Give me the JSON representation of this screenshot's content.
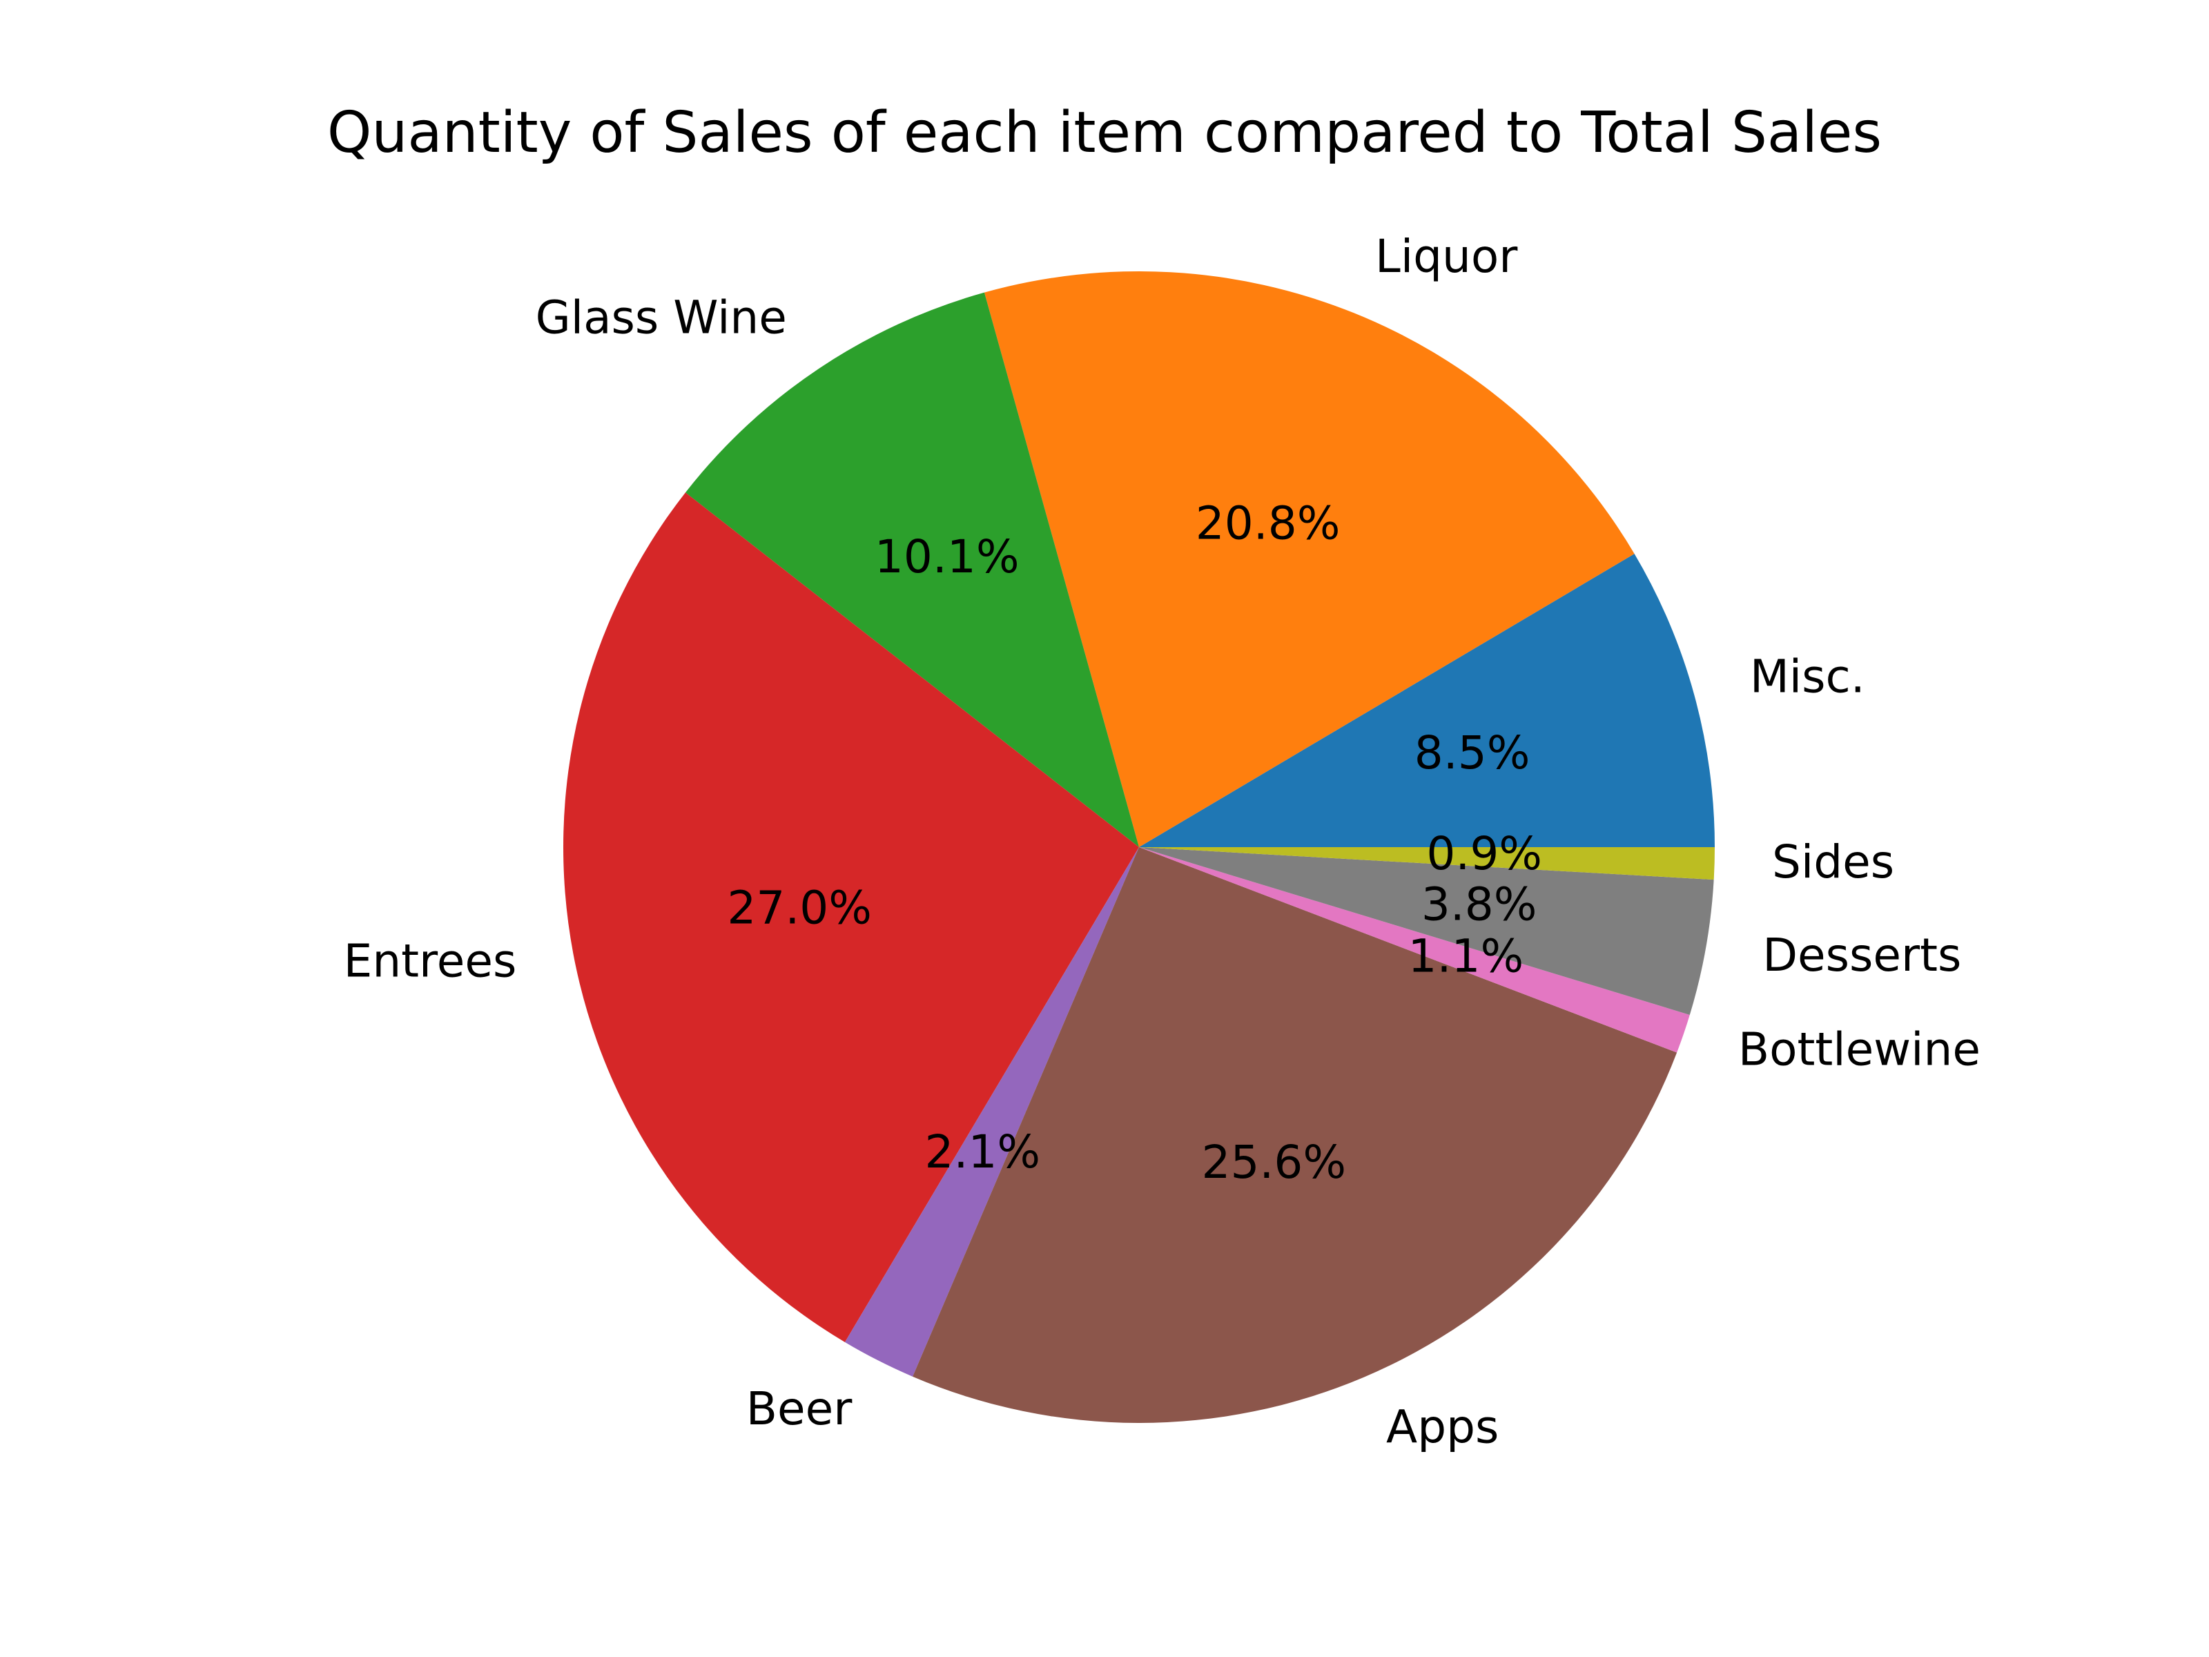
{
  "chart_data": {
    "type": "pie",
    "title": "Quantity of Sales of each item compared to Total Sales",
    "start_angle_deg": 0,
    "direction": "counterclockwise",
    "slices": [
      {
        "label": "Misc.",
        "value": 8.5,
        "pct_label": "8.5%",
        "color": "#1f77b4"
      },
      {
        "label": "Liquor",
        "value": 20.8,
        "pct_label": "20.8%",
        "color": "#ff7f0e"
      },
      {
        "label": "Glass Wine",
        "value": 10.1,
        "pct_label": "10.1%",
        "color": "#2ca02c"
      },
      {
        "label": "Entrees",
        "value": 27.0,
        "pct_label": "27.0%",
        "color": "#d62728"
      },
      {
        "label": "Beer",
        "value": 2.1,
        "pct_label": "2.1%",
        "color": "#9467bd"
      },
      {
        "label": "Apps",
        "value": 25.6,
        "pct_label": "25.6%",
        "color": "#8c564b"
      },
      {
        "label": "Bottlewine",
        "value": 1.1,
        "pct_label": "1.1%",
        "color": "#e377c2"
      },
      {
        "label": "Desserts",
        "value": 3.8,
        "pct_label": "3.8%",
        "color": "#7f7f7f"
      },
      {
        "label": "Sides",
        "value": 0.9,
        "pct_label": "0.9%",
        "color": "#bcbd22"
      }
    ]
  }
}
